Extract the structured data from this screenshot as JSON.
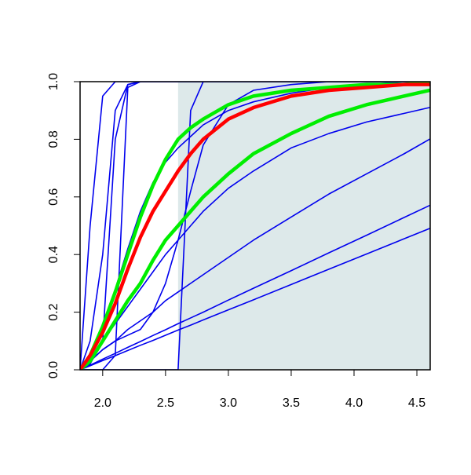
{
  "chart_data": {
    "type": "line",
    "x": [
      1.82,
      1.9,
      2.0,
      2.1,
      2.2,
      2.3,
      2.4,
      2.5,
      2.6,
      2.7,
      2.8,
      3.0,
      3.2,
      3.5,
      3.8,
      4.1,
      4.4,
      4.6
    ],
    "xlim": [
      1.82,
      4.606
    ],
    "ylim": [
      0,
      1
    ],
    "xticks": [
      {
        "value": 2,
        "label": "2.0"
      },
      2.5,
      {
        "value": 3,
        "label": "3.0"
      },
      3.5,
      {
        "value": 4,
        "label": "4.0"
      },
      4.5
    ],
    "yticks": [
      {
        "value": 0,
        "label": "0.0"
      },
      0.2,
      0.4,
      0.6,
      0.8,
      {
        "value": 1,
        "label": "1.0"
      }
    ],
    "shaded_region": {
      "xmin": 2.6,
      "xmax": 4.606,
      "color": "#dde9ea"
    },
    "series": [
      {
        "color": "#0000ee",
        "values": [
          0,
          0.5,
          0.95,
          1,
          1,
          1,
          1,
          1,
          1,
          1,
          1,
          1,
          1,
          1,
          1,
          1,
          1,
          1
        ]
      },
      {
        "color": "#0000ee",
        "values": [
          0,
          0.02,
          0.1,
          0.8,
          0.99,
          1,
          1,
          1,
          1,
          1,
          1,
          1,
          1,
          1,
          1,
          1,
          1,
          1
        ]
      },
      {
        "color": "#0000ee",
        "values": [
          0,
          0.1,
          0.4,
          0.9,
          0.99,
          1,
          1,
          1,
          1,
          1,
          1,
          1,
          1,
          1,
          1,
          1,
          1,
          1
        ]
      },
      {
        "color": "#0000ee",
        "values": [
          0,
          0,
          0,
          0.05,
          0.98,
          1,
          1,
          1,
          1,
          1,
          1,
          1,
          1,
          1,
          1,
          1,
          1,
          1
        ]
      },
      {
        "color": "#0000ee",
        "values": [
          0,
          0,
          0,
          0,
          0,
          0,
          0,
          0,
          0,
          0.9,
          1,
          1,
          1,
          1,
          1,
          1,
          1,
          1
        ]
      },
      {
        "color": "#0000ee",
        "values": [
          0,
          0.03,
          0.07,
          0.1,
          0.12,
          0.14,
          0.2,
          0.3,
          0.45,
          0.62,
          0.78,
          0.92,
          0.97,
          0.99,
          1,
          1,
          1,
          1
        ]
      },
      {
        "color": "#0000ee",
        "values": [
          0,
          0.014,
          0.032,
          0.049,
          0.067,
          0.085,
          0.102,
          0.12,
          0.138,
          0.155,
          0.173,
          0.208,
          0.243,
          0.296,
          0.349,
          0.402,
          0.455,
          0.49
        ]
      },
      {
        "color": "#0000ee",
        "values": [
          0,
          0.016,
          0.037,
          0.057,
          0.078,
          0.098,
          0.119,
          0.139,
          0.16,
          0.18,
          0.2,
          0.242,
          0.283,
          0.344,
          0.406,
          0.467,
          0.529,
          0.57
        ]
      },
      {
        "color": "#0000ee",
        "values": [
          0,
          0.03,
          0.07,
          0.1,
          0.14,
          0.17,
          0.2,
          0.24,
          0.27,
          0.3,
          0.33,
          0.39,
          0.45,
          0.53,
          0.61,
          0.68,
          0.75,
          0.8
        ]
      },
      {
        "color": "#0000ee",
        "values": [
          0,
          0.04,
          0.1,
          0.16,
          0.22,
          0.28,
          0.34,
          0.4,
          0.45,
          0.5,
          0.55,
          0.63,
          0.69,
          0.77,
          0.82,
          0.86,
          0.89,
          0.91
        ]
      },
      {
        "color": "#0000ee",
        "values": [
          0,
          0.05,
          0.15,
          0.28,
          0.42,
          0.55,
          0.65,
          0.72,
          0.77,
          0.81,
          0.85,
          0.9,
          0.93,
          0.96,
          0.98,
          0.99,
          1,
          1
        ]
      },
      {
        "color": "#00ee00",
        "values": [
          0,
          0.05,
          0.15,
          0.27,
          0.4,
          0.53,
          0.64,
          0.73,
          0.8,
          0.84,
          0.87,
          0.92,
          0.95,
          0.97,
          0.98,
          0.99,
          0.99,
          1
        ]
      },
      {
        "color": "#00ee00",
        "values": [
          0,
          0.03,
          0.1,
          0.17,
          0.24,
          0.3,
          0.38,
          0.45,
          0.5,
          0.55,
          0.6,
          0.68,
          0.75,
          0.82,
          0.88,
          0.92,
          0.95,
          0.97
        ]
      },
      {
        "color": "#ff0000",
        "values": [
          0,
          0.05,
          0.13,
          0.23,
          0.35,
          0.46,
          0.55,
          0.62,
          0.69,
          0.75,
          0.8,
          0.87,
          0.91,
          0.95,
          0.97,
          0.98,
          0.99,
          0.99
        ]
      }
    ]
  }
}
